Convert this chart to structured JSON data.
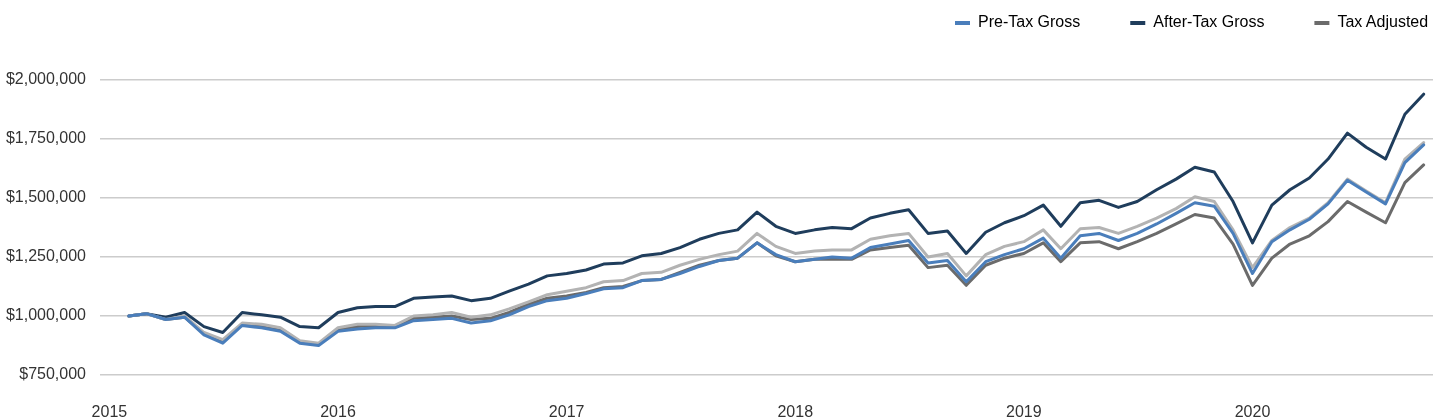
{
  "chart_data": {
    "type": "line",
    "x": [
      "2015-02",
      "2015-03",
      "2015-04",
      "2015-05",
      "2015-06",
      "2015-07",
      "2015-08",
      "2015-09",
      "2015-10",
      "2015-11",
      "2015-12",
      "2016-01",
      "2016-02",
      "2016-03",
      "2016-04",
      "2016-05",
      "2016-06",
      "2016-07",
      "2016-08",
      "2016-09",
      "2016-10",
      "2016-11",
      "2016-12",
      "2017-01",
      "2017-02",
      "2017-03",
      "2017-04",
      "2017-05",
      "2017-06",
      "2017-07",
      "2017-08",
      "2017-09",
      "2017-10",
      "2017-11",
      "2017-12",
      "2018-01",
      "2018-02",
      "2018-03",
      "2018-04",
      "2018-05",
      "2018-06",
      "2018-07",
      "2018-08",
      "2018-09",
      "2018-10",
      "2018-11",
      "2018-12",
      "2019-01",
      "2019-02",
      "2019-03",
      "2019-04",
      "2019-05",
      "2019-06",
      "2019-07",
      "2019-08",
      "2019-09",
      "2019-10",
      "2019-11",
      "2019-12",
      "2020-01",
      "2020-02",
      "2020-03",
      "2020-04",
      "2020-05",
      "2020-06",
      "2020-07",
      "2020-08",
      "2020-09",
      "2020-10"
    ],
    "series": [
      {
        "name": "Pre-Tax Gross",
        "color": "#4a7ebb",
        "values": [
          1000000,
          1010000,
          985000,
          995000,
          920000,
          885000,
          960000,
          950000,
          935000,
          885000,
          875000,
          935000,
          945000,
          950000,
          950000,
          980000,
          985000,
          990000,
          970000,
          980000,
          1005000,
          1040000,
          1065000,
          1075000,
          1095000,
          1115000,
          1120000,
          1150000,
          1155000,
          1180000,
          1210000,
          1235000,
          1245000,
          1310000,
          1260000,
          1230000,
          1240000,
          1250000,
          1245000,
          1290000,
          1305000,
          1320000,
          1225000,
          1235000,
          1145000,
          1230000,
          1260000,
          1285000,
          1330000,
          1245000,
          1340000,
          1350000,
          1320000,
          1350000,
          1390000,
          1435000,
          1480000,
          1465000,
          1350000,
          1180000,
          1315000,
          1365000,
          1410000,
          1475000,
          1575000,
          1525000,
          1475000,
          1650000,
          1725000
        ]
      },
      {
        "color": "#b3b3b3",
        "values": [
          1000000,
          1010000,
          985000,
          1000000,
          930000,
          900000,
          970000,
          965000,
          950000,
          895000,
          885000,
          950000,
          965000,
          965000,
          960000,
          1000000,
          1005000,
          1015000,
          995000,
          1005000,
          1030000,
          1060000,
          1090000,
          1105000,
          1120000,
          1145000,
          1150000,
          1180000,
          1185000,
          1215000,
          1240000,
          1260000,
          1275000,
          1350000,
          1295000,
          1265000,
          1275000,
          1280000,
          1280000,
          1325000,
          1340000,
          1350000,
          1250000,
          1265000,
          1170000,
          1260000,
          1295000,
          1315000,
          1365000,
          1285000,
          1370000,
          1375000,
          1350000,
          1380000,
          1415000,
          1455000,
          1505000,
          1485000,
          1365000,
          1205000,
          1320000,
          1375000,
          1415000,
          1480000,
          1580000,
          1530000,
          1480000,
          1665000,
          1735000
        ]
      },
      {
        "name": "After-Tax Gross",
        "color": "#1f3d5c",
        "values": [
          1000000,
          1010000,
          995000,
          1015000,
          955000,
          930000,
          1015000,
          1005000,
          995000,
          955000,
          950000,
          1015000,
          1035000,
          1040000,
          1040000,
          1075000,
          1080000,
          1085000,
          1065000,
          1075000,
          1105000,
          1135000,
          1170000,
          1180000,
          1195000,
          1220000,
          1225000,
          1255000,
          1265000,
          1290000,
          1325000,
          1350000,
          1365000,
          1440000,
          1380000,
          1350000,
          1365000,
          1375000,
          1370000,
          1415000,
          1435000,
          1450000,
          1350000,
          1360000,
          1265000,
          1355000,
          1395000,
          1425000,
          1470000,
          1380000,
          1480000,
          1490000,
          1460000,
          1485000,
          1535000,
          1580000,
          1630000,
          1610000,
          1485000,
          1310000,
          1470000,
          1535000,
          1585000,
          1665000,
          1775000,
          1715000,
          1665000,
          1855000,
          1940000
        ]
      },
      {
        "name": "Tax Adjusted",
        "color": "#6b6b6b",
        "values": [
          1000000,
          1010000,
          985000,
          995000,
          925000,
          895000,
          965000,
          955000,
          940000,
          890000,
          880000,
          945000,
          955000,
          960000,
          955000,
          990000,
          995000,
          1000000,
          985000,
          990000,
          1015000,
          1050000,
          1075000,
          1085000,
          1100000,
          1120000,
          1125000,
          1150000,
          1155000,
          1185000,
          1215000,
          1235000,
          1245000,
          1310000,
          1255000,
          1230000,
          1240000,
          1240000,
          1240000,
          1280000,
          1290000,
          1300000,
          1205000,
          1215000,
          1130000,
          1215000,
          1245000,
          1265000,
          1310000,
          1230000,
          1310000,
          1315000,
          1285000,
          1315000,
          1350000,
          1390000,
          1430000,
          1415000,
          1305000,
          1130000,
          1245000,
          1305000,
          1340000,
          1400000,
          1485000,
          1440000,
          1395000,
          1565000,
          1640000
        ]
      }
    ],
    "xlim": [
      "2014-12-17",
      "2020-10-16"
    ],
    "xticks": [
      "2015",
      "2016",
      "2017",
      "2018",
      "2019",
      "2020"
    ],
    "ylim": [
      750000,
      2000000
    ],
    "yticks": [
      {
        "value": 750000,
        "label": "$750,000"
      },
      {
        "value": 1000000,
        "label": "$1,000,000"
      },
      {
        "value": 1250000,
        "label": "$1,250,000"
      },
      {
        "value": 1500000,
        "label": "$1,500,000"
      },
      {
        "value": 1750000,
        "label": "$1,750,000"
      },
      {
        "value": 2000000,
        "label": "$2,000,000"
      }
    ],
    "grid": "y",
    "legend": "top right",
    "marker": "none"
  }
}
